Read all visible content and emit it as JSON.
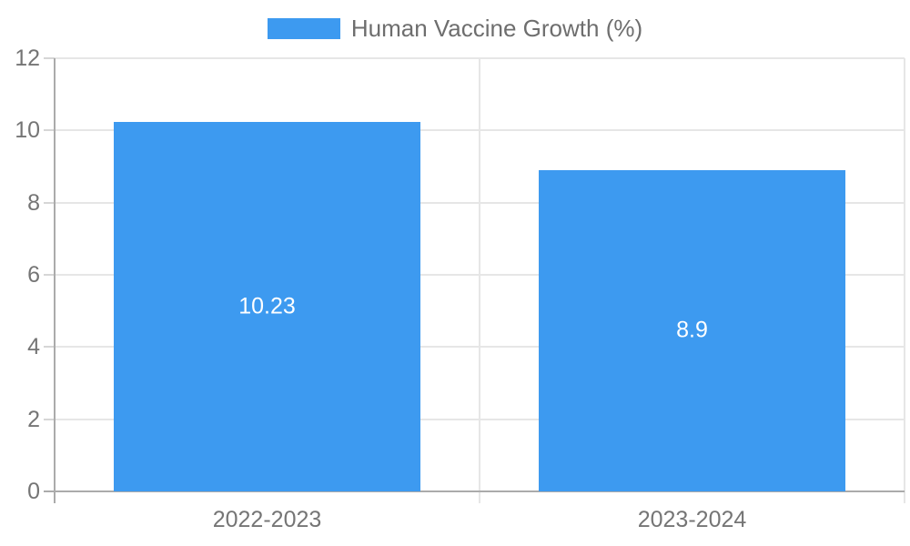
{
  "legend": {
    "label": "Human Vaccine Growth (%)"
  },
  "chart_data": {
    "type": "bar",
    "title": "",
    "series_name": "Human Vaccine Growth (%)",
    "categories": [
      "2022-2023",
      "2023-2024"
    ],
    "values": [
      10.23,
      8.9
    ],
    "value_labels": [
      "10.23",
      "8.9"
    ],
    "xlabel": "",
    "ylabel": "",
    "ylim": [
      0,
      12
    ],
    "yticks": [
      0,
      2,
      4,
      6,
      8,
      10,
      12
    ],
    "grid": "on",
    "legend_position": "top-center"
  },
  "colors": {
    "bar": "#3D9AF0",
    "bar_label": "#FFFFFF",
    "axis_line": "#ABABAB",
    "gridline": "#E6E6E6",
    "tick_mark": "#D6D6D6",
    "tick_label": "#757575",
    "legend_text": "#6E6E6E",
    "background": "#FFFFFF"
  }
}
